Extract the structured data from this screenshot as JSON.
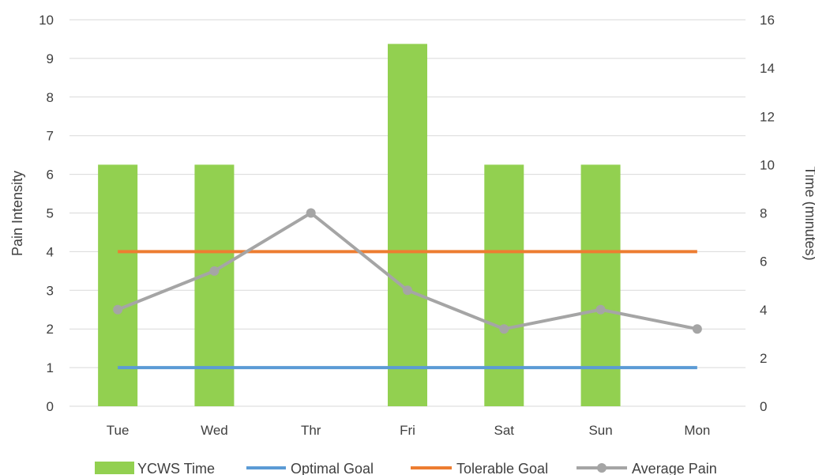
{
  "chart_data": {
    "type": "bar",
    "categories": [
      "Tue",
      "Wed",
      "Thr",
      "Fri",
      "Sat",
      "Sun",
      "Mon"
    ],
    "y_left": {
      "label": "Pain Intensity",
      "min": 0,
      "max": 10,
      "step": 1
    },
    "y_right": {
      "label": "Time (minutes)",
      "min": 0,
      "max": 16,
      "step": 2
    },
    "grid": true,
    "legend_position": "bottom",
    "series": [
      {
        "name": "YCWS Time",
        "kind": "bar",
        "axis": "right",
        "color": "#92d050",
        "values": [
          10,
          10,
          0,
          15,
          10,
          10,
          0
        ]
      },
      {
        "name": "Optimal Goal",
        "kind": "line",
        "axis": "left",
        "color": "#5b9bd5",
        "values": [
          1,
          1,
          1,
          1,
          1,
          1,
          1
        ]
      },
      {
        "name": "Tolerable Goal",
        "kind": "line",
        "axis": "left",
        "color": "#ed7d31",
        "values": [
          4,
          4,
          4,
          4,
          4,
          4,
          4
        ]
      },
      {
        "name": "Average Pain",
        "kind": "line-marker",
        "axis": "left",
        "color": "#a5a5a5",
        "values": [
          2.5,
          3.5,
          5,
          3,
          2,
          2.5,
          2
        ]
      }
    ]
  }
}
